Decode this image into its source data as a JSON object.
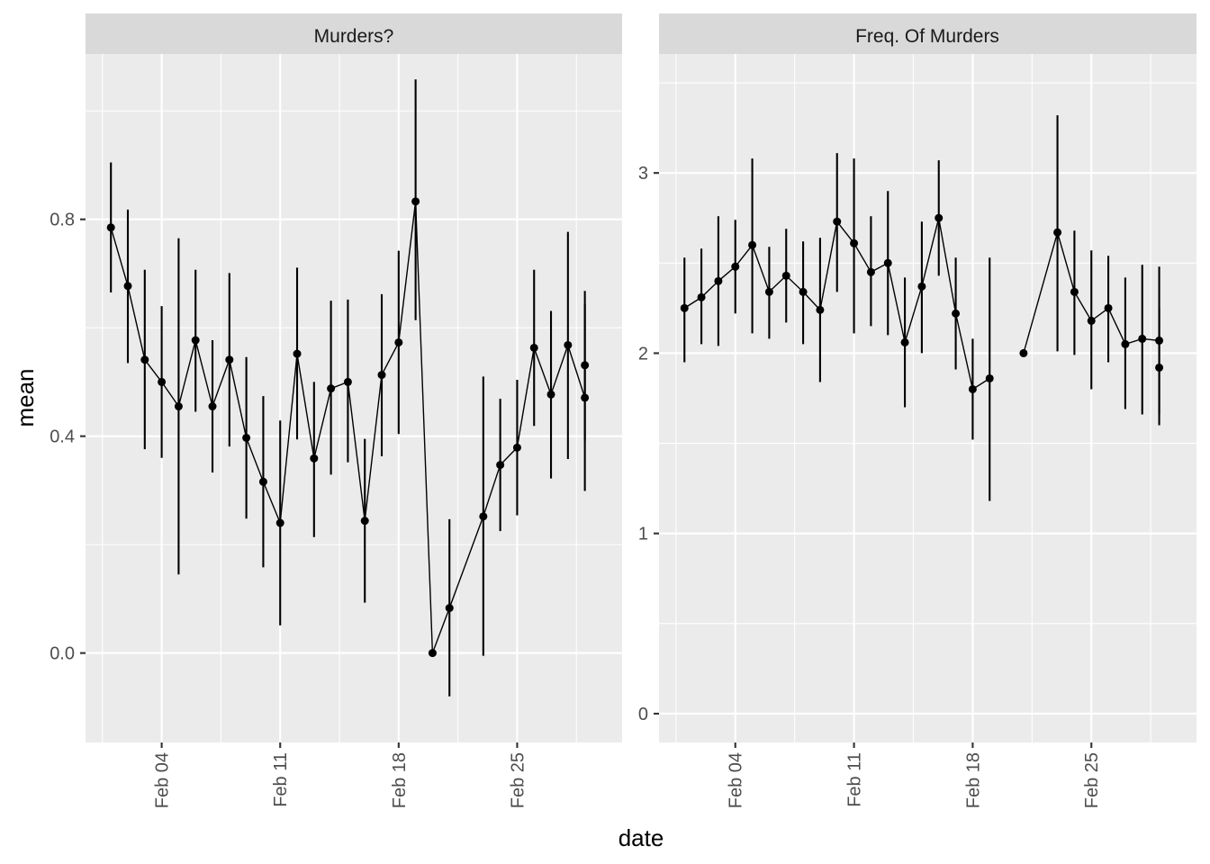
{
  "chart_data": {
    "type": "line",
    "xlabel": "date",
    "ylabel": "mean",
    "x_tick_labels": [
      "Feb 04",
      "Feb 11",
      "Feb 18",
      "Feb 25"
    ],
    "x_tick_dates": [
      4,
      11,
      18,
      25
    ],
    "x_domain": [
      -0.5,
      31.2
    ],
    "panels": [
      {
        "strip_label": "Murders?",
        "ylim": [
          -0.165,
          1.105
        ],
        "y_ticks": [
          0.0,
          0.4,
          0.8
        ],
        "y_tick_labels": [
          "0.0",
          "0.4",
          "0.8"
        ],
        "points": [
          {
            "date": "2024-02-01",
            "mean": 0.785,
            "lo": 0.665,
            "hi": 0.905
          },
          {
            "date": "2024-02-02",
            "mean": 0.677,
            "lo": 0.535,
            "hi": 0.818
          },
          {
            "date": "2024-02-03",
            "mean": 0.541,
            "lo": 0.376,
            "hi": 0.707
          },
          {
            "date": "2024-02-04",
            "mean": 0.5,
            "lo": 0.36,
            "hi": 0.64
          },
          {
            "date": "2024-02-05",
            "mean": 0.455,
            "lo": 0.145,
            "hi": 0.765
          },
          {
            "date": "2024-02-06",
            "mean": 0.577,
            "lo": 0.445,
            "hi": 0.707
          },
          {
            "date": "2024-02-07",
            "mean": 0.455,
            "lo": 0.333,
            "hi": 0.577
          },
          {
            "date": "2024-02-08",
            "mean": 0.541,
            "lo": 0.381,
            "hi": 0.701
          },
          {
            "date": "2024-02-09",
            "mean": 0.397,
            "lo": 0.248,
            "hi": 0.546
          },
          {
            "date": "2024-02-10",
            "mean": 0.316,
            "lo": 0.158,
            "hi": 0.474
          },
          {
            "date": "2024-02-11",
            "mean": 0.24,
            "lo": 0.051,
            "hi": 0.429
          },
          {
            "date": "2024-02-12",
            "mean": 0.552,
            "lo": 0.394,
            "hi": 0.711
          },
          {
            "date": "2024-02-13",
            "mean": 0.359,
            "lo": 0.214,
            "hi": 0.5
          },
          {
            "date": "2024-02-14",
            "mean": 0.488,
            "lo": 0.329,
            "hi": 0.65
          },
          {
            "date": "2024-02-15",
            "mean": 0.5,
            "lo": 0.352,
            "hi": 0.652
          },
          {
            "date": "2024-02-16",
            "mean": 0.244,
            "lo": 0.093,
            "hi": 0.395
          },
          {
            "date": "2024-02-17",
            "mean": 0.513,
            "lo": 0.363,
            "hi": 0.662
          },
          {
            "date": "2024-02-18",
            "mean": 0.573,
            "lo": 0.404,
            "hi": 0.742
          },
          {
            "date": "2024-02-19",
            "mean": 0.833,
            "lo": 0.614,
            "hi": 1.058
          },
          {
            "date": "2024-02-20",
            "mean": 0.0,
            "lo": 0.0,
            "hi": 0.0
          },
          {
            "date": "2024-02-21",
            "mean": 0.083,
            "lo": -0.08,
            "hi": 0.247
          },
          {
            "date": "2024-02-23",
            "mean": 0.252,
            "lo": -0.005,
            "hi": 0.51
          },
          {
            "date": "2024-02-24",
            "mean": 0.347,
            "lo": 0.225,
            "hi": 0.469
          },
          {
            "date": "2024-02-25",
            "mean": 0.379,
            "lo": 0.254,
            "hi": 0.504
          },
          {
            "date": "2024-02-26",
            "mean": 0.563,
            "lo": 0.419,
            "hi": 0.707
          },
          {
            "date": "2024-02-27",
            "mean": 0.477,
            "lo": 0.322,
            "hi": 0.631
          },
          {
            "date": "2024-02-28",
            "mean": 0.568,
            "lo": 0.358,
            "hi": 0.777
          },
          {
            "date": "2024-02-29",
            "mean": 0.471,
            "lo": 0.299,
            "hi": 0.643
          },
          {
            "date": "2024-03-01",
            "mean": 0.531,
            "lo": 0.392,
            "hi": 0.668
          }
        ]
      },
      {
        "strip_label": "Freq. Of Murders",
        "ylim": [
          -0.16,
          3.66
        ],
        "y_ticks": [
          0,
          1,
          2,
          3
        ],
        "y_tick_labels": [
          "0",
          "1",
          "2",
          "3"
        ],
        "points": [
          {
            "date": "2024-02-01",
            "mean": 2.25,
            "lo": 1.95,
            "hi": 2.53
          },
          {
            "date": "2024-02-02",
            "mean": 2.31,
            "lo": 2.05,
            "hi": 2.58
          },
          {
            "date": "2024-02-03",
            "mean": 2.4,
            "lo": 2.04,
            "hi": 2.76
          },
          {
            "date": "2024-02-04",
            "mean": 2.48,
            "lo": 2.22,
            "hi": 2.74
          },
          {
            "date": "2024-02-05",
            "mean": 2.6,
            "lo": 2.11,
            "hi": 3.08
          },
          {
            "date": "2024-02-06",
            "mean": 2.34,
            "lo": 2.08,
            "hi": 2.59
          },
          {
            "date": "2024-02-07",
            "mean": 2.43,
            "lo": 2.17,
            "hi": 2.69
          },
          {
            "date": "2024-02-08",
            "mean": 2.34,
            "lo": 2.05,
            "hi": 2.62
          },
          {
            "date": "2024-02-09",
            "mean": 2.24,
            "lo": 1.84,
            "hi": 2.64
          },
          {
            "date": "2024-02-10",
            "mean": 2.73,
            "lo": 2.34,
            "hi": 3.11
          },
          {
            "date": "2024-02-11",
            "mean": 2.61,
            "lo": 2.11,
            "hi": 3.08
          },
          {
            "date": "2024-02-12",
            "mean": 2.45,
            "lo": 2.15,
            "hi": 2.76
          },
          {
            "date": "2024-02-13",
            "mean": 2.5,
            "lo": 2.1,
            "hi": 2.9
          },
          {
            "date": "2024-02-14",
            "mean": 2.06,
            "lo": 1.7,
            "hi": 2.42
          },
          {
            "date": "2024-02-15",
            "mean": 2.37,
            "lo": 2.0,
            "hi": 2.73
          },
          {
            "date": "2024-02-16",
            "mean": 2.75,
            "lo": 2.43,
            "hi": 3.07
          },
          {
            "date": "2024-02-17",
            "mean": 2.22,
            "lo": 1.91,
            "hi": 2.53
          },
          {
            "date": "2024-02-18",
            "mean": 1.8,
            "lo": 1.52,
            "hi": 2.08
          },
          {
            "date": "2024-02-19",
            "mean": 1.86,
            "lo": 1.18,
            "hi": 2.53
          },
          {
            "date": "2024-02-20",
            "mean": null,
            "lo": null,
            "hi": null
          },
          {
            "date": "2024-02-21",
            "mean": 2.0,
            "lo": 2.0,
            "hi": 2.0
          },
          {
            "date": "2024-02-23",
            "mean": 2.67,
            "lo": 2.01,
            "hi": 3.32
          },
          {
            "date": "2024-02-24",
            "mean": 2.34,
            "lo": 1.99,
            "hi": 2.68
          },
          {
            "date": "2024-02-25",
            "mean": 2.18,
            "lo": 1.8,
            "hi": 2.57
          },
          {
            "date": "2024-02-26",
            "mean": 2.25,
            "lo": 1.95,
            "hi": 2.54
          },
          {
            "date": "2024-02-27",
            "mean": 2.05,
            "lo": 1.69,
            "hi": 2.42
          },
          {
            "date": "2024-02-28",
            "mean": 2.08,
            "lo": 1.66,
            "hi": 2.49
          },
          {
            "date": "2024-02-29",
            "mean": 2.07,
            "lo": 1.66,
            "hi": 2.48
          },
          {
            "date": "2024-03-01",
            "mean": 1.92,
            "lo": 1.6,
            "hi": 2.25
          }
        ]
      }
    ]
  }
}
